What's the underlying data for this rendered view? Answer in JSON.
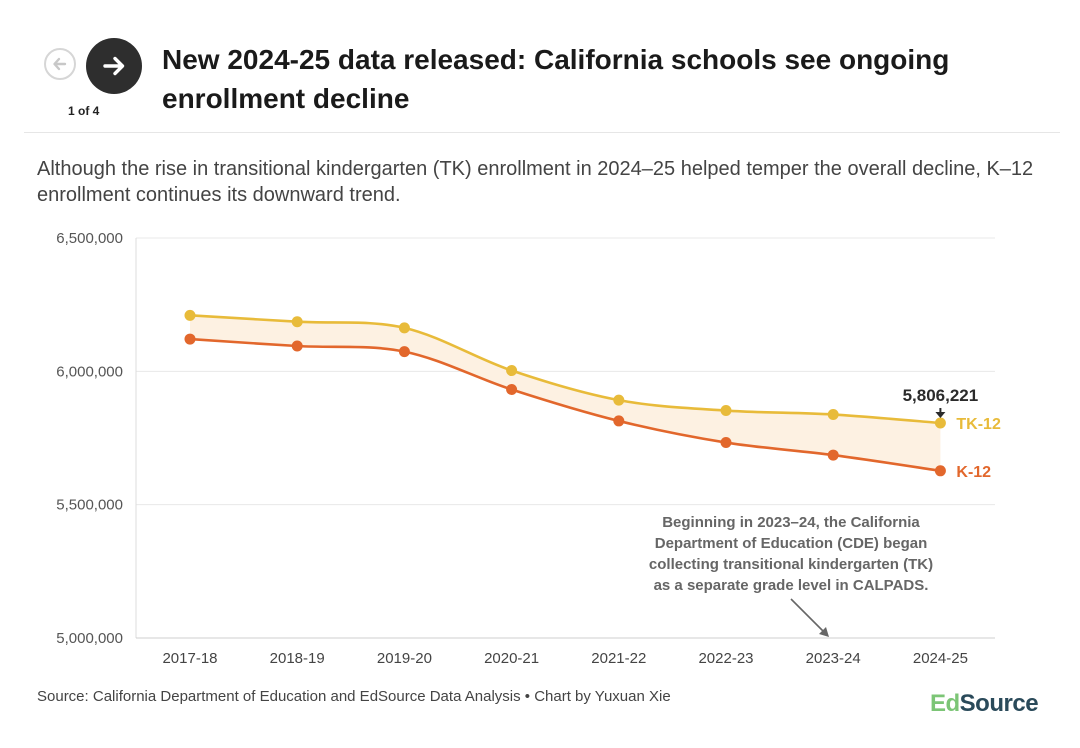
{
  "header": {
    "title": "New 2024-25 data released: California schools see ongoing enrollment decline",
    "pager": "1 of 4",
    "prev_icon": "arrow-left-icon",
    "next_icon": "arrow-right-icon"
  },
  "subtitle": "Although the rise in transitional kindergarten (TK) enrollment in 2024–25 helped temper the overall decline, K–12 enrollment continues its downward trend.",
  "footer": {
    "source": "Source: California Department of Education and EdSource Data Analysis • Chart by Yuxuan Xie",
    "logo_part1": "Ed",
    "logo_part2": "Source"
  },
  "colors": {
    "tk12": "#e8bb3a",
    "k12": "#e2672c",
    "band": "#fdf1e2",
    "grid": "#e8e8e8"
  },
  "chart_data": {
    "type": "line",
    "categories": [
      "2017-18",
      "2018-19",
      "2019-20",
      "2020-21",
      "2021-22",
      "2022-23",
      "2023-24",
      "2024-25"
    ],
    "series": [
      {
        "name": "TK-12",
        "values": [
          6210000,
          6186000,
          6163000,
          6003000,
          5892000,
          5853000,
          5838000,
          5806221
        ]
      },
      {
        "name": "K-12",
        "values": [
          6121000,
          6095000,
          6074000,
          5932000,
          5814000,
          5733000,
          5686000,
          5627000
        ]
      }
    ],
    "ylim": [
      5000000,
      6500000
    ],
    "yticks": [
      5000000,
      5500000,
      6000000,
      6500000
    ],
    "ytick_labels": [
      "5,000,000",
      "5,500,000",
      "6,000,000",
      "6,500,000"
    ],
    "grid": true,
    "legend": "direct labels at line ends",
    "annotations": [
      {
        "text": "5,806,221",
        "target": "TK-12 2024-25"
      },
      {
        "lines": [
          "Beginning in 2023–24, the California",
          "Department of Education (CDE) began",
          "collecting transitional kindergarten (TK)",
          "as a separate grade level in CALPADS."
        ],
        "target": "2023-24"
      }
    ]
  }
}
